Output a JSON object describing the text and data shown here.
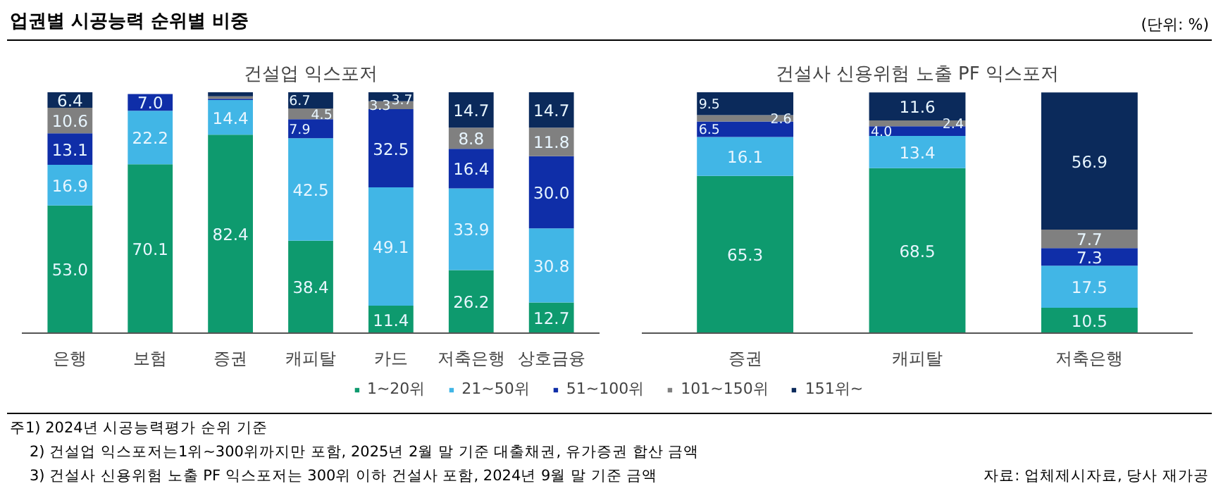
{
  "chart_data": [
    {
      "type": "bar",
      "stacked": true,
      "title": "건설업 익스포저",
      "annotations": [
        "업권별 시공능력 순위별 비중",
        "(단위: %)",
        "주1) 2024년 시공능력평가 순위 기준",
        "2) 건설업 익스포저는1위~300위까지만 포함, 2025년 2월 말 기준 대출채권, 유가증권 합산 금액",
        "3) 건설사 신용위험 노출 PF 익스포저는 300위 이하 건설사 포함, 2024년 9월 말 기준 금액"
      ],
      "categories": [
        "은행",
        "보험",
        "증권",
        "캐피탈",
        "카드",
        "저축은행",
        "상호금융"
      ],
      "tick_labels": "x",
      "grid": false,
      "legend": "bottom",
      "series": [
        {
          "name": "1~20위",
          "color": "#0e9a6e",
          "values": [
            53.0,
            70.1,
            82.4,
            38.4,
            11.4,
            26.2,
            12.7
          ],
          "value_labels": [
            "53.0",
            "70.1",
            "82.4",
            "38.4",
            "11.4",
            "26.2",
            "12.7"
          ]
        },
        {
          "name": "21~50위",
          "color": "#41b6e6",
          "values": [
            16.9,
            22.2,
            14.4,
            42.5,
            49.1,
            33.9,
            30.8
          ],
          "value_labels": [
            "16.9",
            "22.2",
            "14.4",
            "42.5",
            "49.1",
            "33.9",
            "30.8"
          ]
        },
        {
          "name": "51~100위",
          "color": "#0f2ea8",
          "values": [
            13.1,
            7.0,
            0.5,
            7.9,
            32.5,
            16.4,
            30.0
          ],
          "value_labels": [
            "13.1",
            "7.0",
            null,
            "7.9",
            "32.5",
            "16.4",
            "30.0"
          ]
        },
        {
          "name": "101~150위",
          "color": "#808080",
          "values": [
            10.6,
            null,
            1.0,
            4.5,
            3.3,
            8.8,
            11.8
          ],
          "value_labels": [
            "10.6",
            null,
            null,
            "4.5",
            "3.3",
            "8.8",
            "11.8"
          ]
        },
        {
          "name": "151위~",
          "color": "#0b2a5b",
          "values": [
            6.4,
            null,
            1.7,
            6.7,
            3.7,
            14.7,
            14.7
          ],
          "value_labels": [
            "6.4",
            null,
            null,
            "6.7",
            "3.7",
            "14.7",
            "14.7"
          ]
        }
      ]
    },
    {
      "type": "bar",
      "stacked": true,
      "title": "건설사 신용위험 노출 PF 익스포저",
      "annotations": [
        "자료: 업체제시자료, 당사 재가공"
      ],
      "categories": [
        "증권",
        "캐피탈",
        "저축은행"
      ],
      "tick_labels": "x",
      "grid": false,
      "legend": "bottom",
      "series": [
        {
          "name": "1~20위",
          "color": "#0e9a6e",
          "values": [
            65.3,
            68.5,
            10.5
          ],
          "value_labels": [
            "65.3",
            "68.5",
            "10.5"
          ]
        },
        {
          "name": "21~50위",
          "color": "#41b6e6",
          "values": [
            16.1,
            13.4,
            17.5
          ],
          "value_labels": [
            "16.1",
            "13.4",
            "17.5"
          ]
        },
        {
          "name": "51~100위",
          "color": "#0f2ea8",
          "values": [
            6.5,
            4.0,
            7.3
          ],
          "value_labels": [
            "6.5",
            "4.0",
            "7.3"
          ]
        },
        {
          "name": "101~150위",
          "color": "#808080",
          "values": [
            2.6,
            2.4,
            7.7
          ],
          "value_labels": [
            "2.6",
            "2.4",
            "7.7"
          ]
        },
        {
          "name": "151위~",
          "color": "#0b2a5b",
          "values": [
            9.5,
            11.6,
            56.9
          ],
          "value_labels": [
            "9.5",
            "11.6",
            "56.9"
          ]
        }
      ]
    }
  ]
}
